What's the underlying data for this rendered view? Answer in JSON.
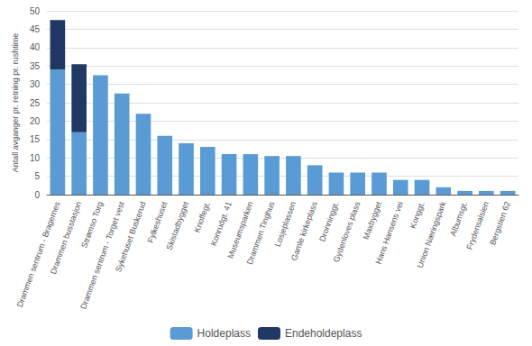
{
  "chart_data": {
    "type": "bar",
    "stacked": true,
    "categories": [
      "Drammen sentrum - Bragernes",
      "Drammen busstasjon",
      "Strømso Torg",
      "Drammen sentrum - Torget vest",
      "Sykehuset Buskerud",
      "Fylkeshuset",
      "Skistadbygget",
      "Knoffegt.",
      "Konrudgt. 41",
      "Museumsparken",
      "Drammen Tinghus",
      "Losjeplassen",
      "Gamle kirkeplass",
      "Dronninggt.",
      "Gydenloves plass",
      "Maxbygget",
      "Hans Hansens vei",
      "Konggt.",
      "Union Næringspark",
      "Albumsgt.",
      "Frydensalsien",
      "Bergstien 62"
    ],
    "series": [
      {
        "name": "Holdeplass",
        "color": "#5b9bd5",
        "values": [
          34,
          17,
          32.5,
          27.5,
          22,
          16,
          14,
          13,
          11,
          11,
          10.5,
          10.5,
          8,
          6,
          6,
          6,
          4,
          4,
          2,
          1,
          1,
          1
        ]
      },
      {
        "name": "Endeholdeplass",
        "color": "#1f3864",
        "values": [
          13.5,
          18.5,
          0,
          0,
          0,
          0,
          0,
          0,
          0,
          0,
          0,
          0,
          0,
          0,
          0,
          0,
          0,
          0,
          0,
          0,
          0,
          0
        ]
      }
    ],
    "ylabel": "Antall avganger pr. retning pr. rushtime",
    "ylim": [
      0,
      50
    ],
    "yticks": [
      0,
      5,
      10,
      15,
      20,
      25,
      30,
      35,
      40,
      45,
      50
    ],
    "grid": true,
    "legend": "bottom"
  }
}
